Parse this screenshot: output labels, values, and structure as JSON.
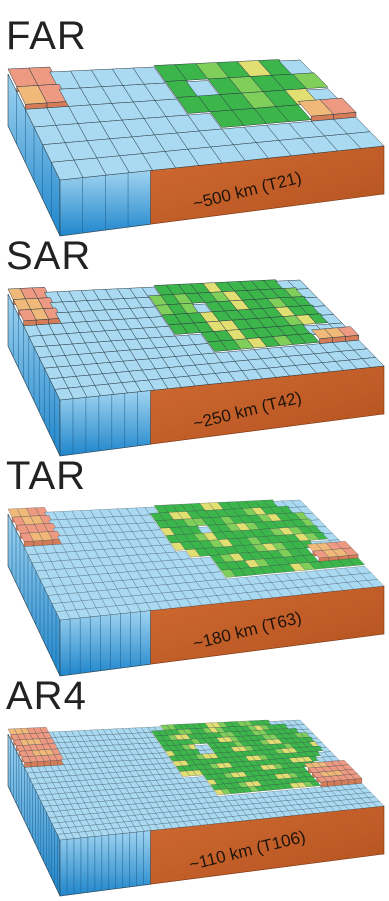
{
  "colors": {
    "ocean_top": "#a9daf2",
    "ocean_side": "#3fa6df",
    "land_green": "#3cb54a",
    "land_light_green": "#7fcf5a",
    "land_yellow": "#e1de72",
    "land_orange": "#f0b97a",
    "land_pink": "#ee9a82",
    "crust": "#c8602a",
    "grid_line": "#2b3b44"
  },
  "panels": [
    {
      "title": "FAR",
      "resolution_label": "~500 km (T21)",
      "grid_cells_x": 14
    },
    {
      "title": "SAR",
      "resolution_label": "~250 km (T42)",
      "grid_cells_x": 24
    },
    {
      "title": "TAR",
      "resolution_label": "~180 km (T63)",
      "grid_cells_x": 32
    },
    {
      "title": "AR4",
      "resolution_label": "~110 km (T106)",
      "grid_cells_x": 46
    }
  ]
}
